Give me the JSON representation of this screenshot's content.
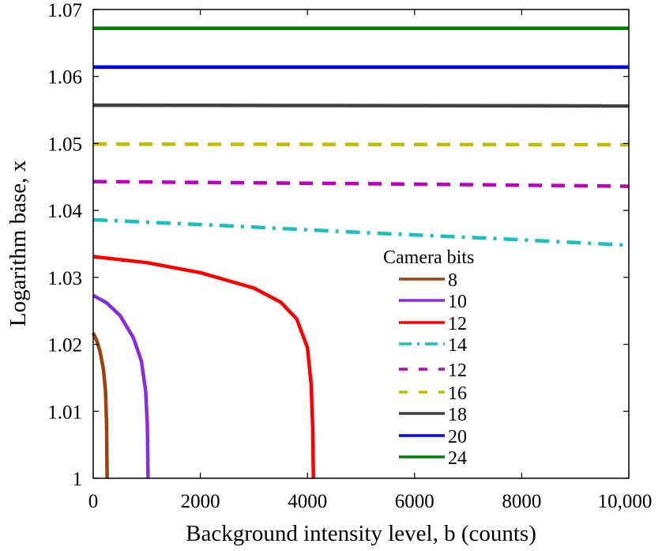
{
  "chart_data": {
    "type": "line",
    "xlabel": "Background intensity level, b (counts)",
    "ylabel": "Logarithm base, x",
    "xlim": [
      0,
      10000
    ],
    "ylim": [
      1,
      1.07
    ],
    "x_ticks": [
      "0",
      "2000",
      "4000",
      "6000",
      "8000",
      "10,000"
    ],
    "x_tick_values": [
      0,
      2000,
      4000,
      6000,
      8000,
      10000
    ],
    "y_ticks": [
      "1",
      "1.01",
      "1.02",
      "1.03",
      "1.04",
      "1.05",
      "1.06",
      "1.07"
    ],
    "y_tick_values": [
      1,
      1.01,
      1.02,
      1.03,
      1.04,
      1.05,
      1.06,
      1.07
    ],
    "grid": false,
    "legend_title": "Camera bits",
    "legend_position": "bottom-right",
    "series": [
      {
        "name": "8",
        "color": "#a0400a",
        "style": "solid",
        "x": [
          0,
          64,
          128,
          192,
          230,
          250,
          260
        ],
        "y": [
          1.0217,
          1.0206,
          1.0189,
          1.0162,
          1.013,
          1.008,
          1.0
        ]
      },
      {
        "name": "10",
        "color": "#8a2be2",
        "style": "solid",
        "x": [
          0,
          250,
          500,
          750,
          900,
          980,
          1010,
          1024
        ],
        "y": [
          1.0273,
          1.0262,
          1.0243,
          1.021,
          1.0175,
          1.013,
          1.008,
          1.0
        ]
      },
      {
        "name": "12",
        "color": "#ff0000",
        "style": "solid",
        "x": [
          0,
          1000,
          2000,
          3000,
          3500,
          3800,
          4000,
          4070,
          4100,
          4110
        ],
        "y": [
          1.0331,
          1.0322,
          1.0307,
          1.0284,
          1.0263,
          1.0238,
          1.0195,
          1.014,
          1.007,
          1.0
        ]
      },
      {
        "name": "14",
        "color": "#19c0c0",
        "style": "dashdot",
        "x": [
          0,
          2500,
          5000,
          7500,
          10000
        ],
        "y": [
          1.0386,
          1.0377,
          1.0367,
          1.0358,
          1.0348
        ]
      },
      {
        "name": "12",
        "color": "#c000c0",
        "style": "dashed",
        "x": [
          0,
          5000,
          10000
        ],
        "y": [
          1.0443,
          1.044,
          1.0436
        ]
      },
      {
        "name": "16",
        "color": "#bfbf00",
        "style": "dashed",
        "x": [
          0,
          10000
        ],
        "y": [
          1.0499,
          1.0498
        ]
      },
      {
        "name": "18",
        "color": "#404040",
        "style": "solid",
        "x": [
          0,
          10000
        ],
        "y": [
          1.0557,
          1.0556
        ]
      },
      {
        "name": "20",
        "color": "#0000ff",
        "style": "solid",
        "x": [
          0,
          10000
        ],
        "y": [
          1.0614,
          1.0614
        ]
      },
      {
        "name": "24",
        "color": "#008000",
        "style": "solid",
        "x": [
          0,
          10000
        ],
        "y": [
          1.0672,
          1.0672
        ]
      }
    ]
  }
}
